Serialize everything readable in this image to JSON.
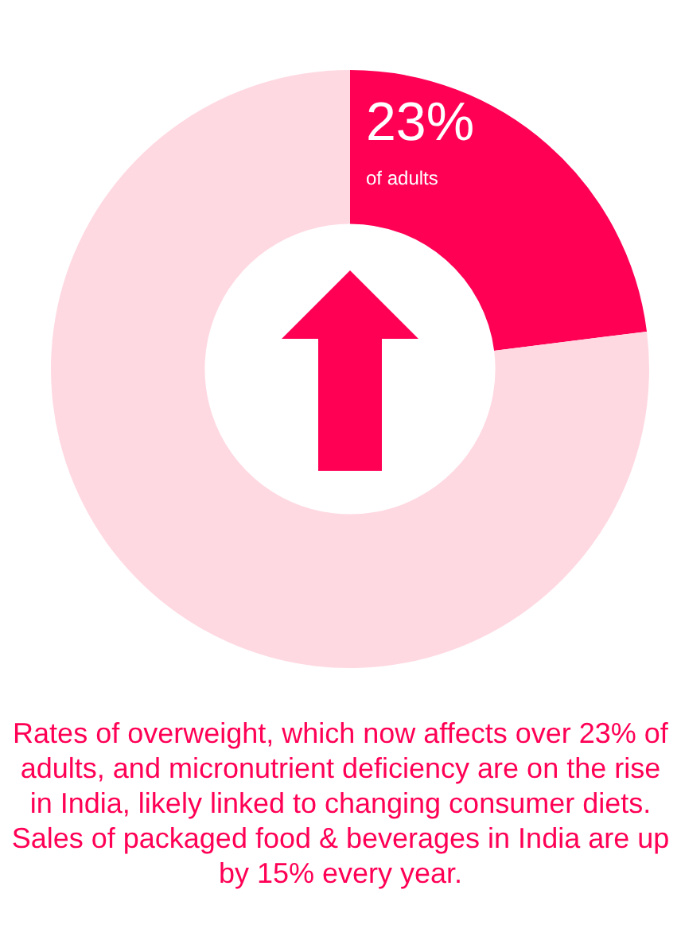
{
  "chart_data": {
    "type": "donut",
    "categories": [
      null,
      null
    ],
    "values": [
      23,
      77
    ],
    "colors": [
      "#ff0055",
      "#ffd9e2"
    ],
    "value_labels": [
      "23%",
      null
    ],
    "annotations": [
      "of adults",
      "Rates of overweight, which now affects over 23% of adults, and micronutrient deficiency are on the rise in India, likely linked to changing consumer diets. Sales of packaged food & beverages in India are up by 15% every year."
    ]
  }
}
